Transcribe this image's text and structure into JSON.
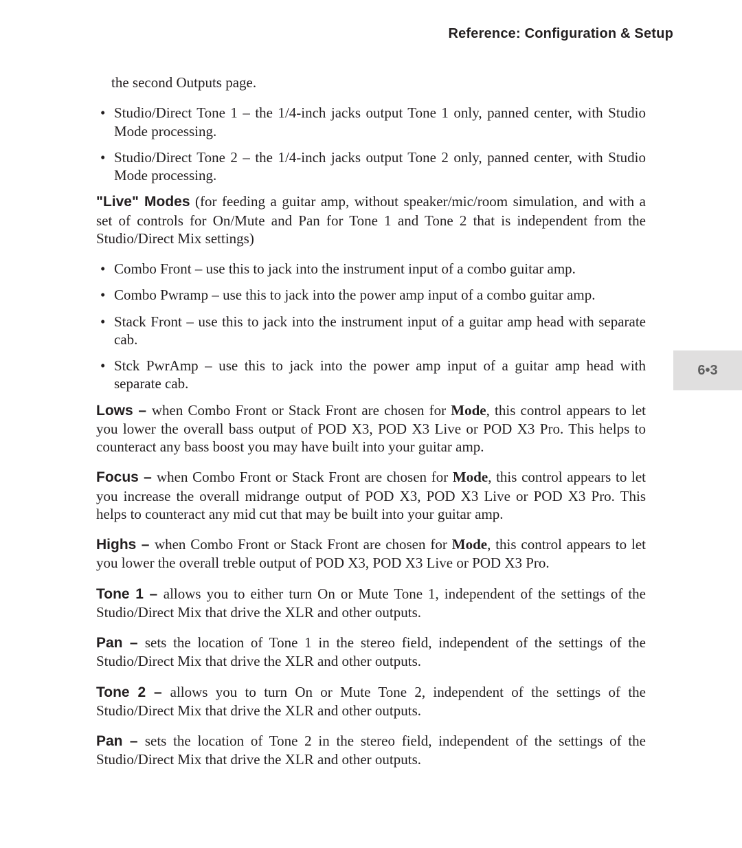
{
  "header": {
    "title": "Reference: Configuration & Setup"
  },
  "tab": {
    "label": "6•3",
    "bg_color": "#e0dfdf",
    "text_color": "#5f5f5f"
  },
  "intro": {
    "outputs_line": "the second Outputs page."
  },
  "bullets_top": [
    "Studio/Direct Tone 1 – the 1/4-inch jacks output Tone 1 only, panned center, with Studio Mode processing.",
    "Studio/Direct Tone 2 – the 1/4-inch jacks output Tone 2 only, panned center, with Studio Mode processing."
  ],
  "live_modes": {
    "label": "\"Live\" Modes",
    "text": " (for feeding a guitar amp, without speaker/mic/room simulation, and with a set of controls for On/Mute and Pan for Tone 1 and Tone 2 that is independent from the Studio/Direct Mix settings)"
  },
  "bullets_live": [
    "Combo Front – use this to jack into the instrument input of a combo guitar amp.",
    "Combo Pwramp – use this to jack into the power amp input of a combo guitar amp.",
    "Stack Front – use this to jack into the instrument input of a guitar amp head with separate cab.",
    "Stck PwrAmp – use this to jack into the power amp input of a guitar amp head with separate cab."
  ],
  "paras": {
    "lows": {
      "label": "Lows – ",
      "pre": "when Combo Front or Stack Front are chosen for ",
      "mode": "Mode",
      "post": ", this control appears to let you lower the overall bass output of POD X3, POD X3 Live or POD X3 Pro. This helps to counteract any bass boost you may have built into your guitar amp."
    },
    "focus": {
      "label": "Focus – ",
      "pre": "when Combo Front or Stack Front are chosen for ",
      "mode": "Mode",
      "post": ", this control appears to let you increase the overall midrange output of POD X3, POD X3 Live or POD X3 Pro.  This helps to counteract any mid cut that may be built into your guitar amp."
    },
    "highs": {
      "label": "Highs – ",
      "pre": " when Combo Front or Stack Front are chosen for ",
      "mode": "Mode",
      "post": ", this control appears to let you lower the overall treble output of POD X3, POD X3 Live or POD X3 Pro."
    },
    "tone1": {
      "label": "Tone 1 – ",
      "text": "allows you to either turn On or Mute Tone 1, independent of the settings of the Studio/Direct Mix that drive the XLR and other outputs."
    },
    "pan1": {
      "label": "Pan – ",
      "text": "sets the location of Tone 1 in the stereo field, independent of the settings of the Studio/Direct Mix that drive the XLR and other outputs."
    },
    "tone2": {
      "label": "Tone 2 – ",
      "text": "allows you to turn On or Mute Tone 2, independent of the settings of the Studio/Direct Mix that drive the XLR and other outputs."
    },
    "pan2": {
      "label": "Pan – ",
      "text": " sets the location of Tone 2 in the stereo field, independent of the settings of the Studio/Direct Mix that drive the XLR and other outputs."
    }
  }
}
